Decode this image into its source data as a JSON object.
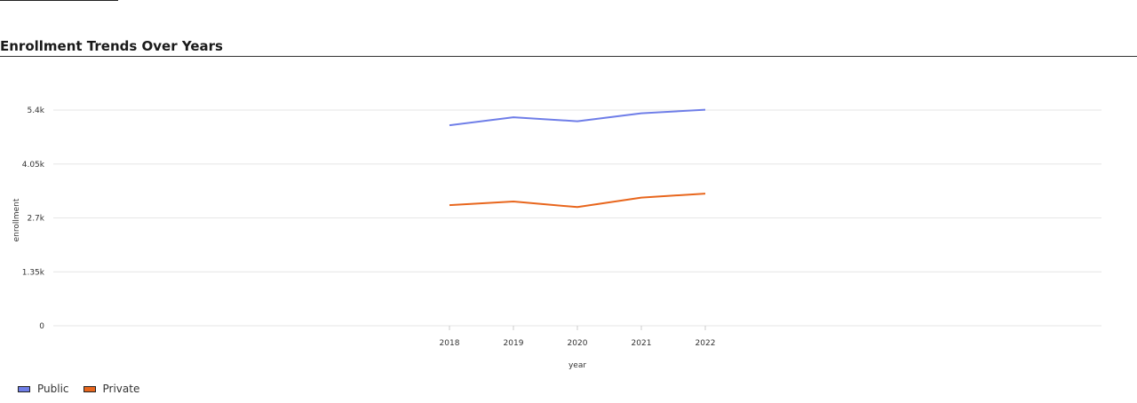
{
  "title": "Enrollment Trends Over Years",
  "chart_data": {
    "type": "line",
    "title": "Enrollment Trends Over Years",
    "xlabel": "year",
    "ylabel": "enrollment",
    "x": [
      "2018",
      "2019",
      "2020",
      "2021",
      "2022"
    ],
    "y_ticks": [
      "0",
      "1.35k",
      "2.7k",
      "4.05k",
      "5.4k"
    ],
    "ylim": [
      0,
      5400
    ],
    "grid": true,
    "legend_position": "bottom-left",
    "series": [
      {
        "name": "Public",
        "color": "#6f7ee8",
        "values": [
          5020,
          5220,
          5120,
          5320,
          5410
        ]
      },
      {
        "name": "Private",
        "color": "#e8661d",
        "values": [
          3020,
          3110,
          2970,
          3210,
          3310
        ]
      }
    ]
  }
}
